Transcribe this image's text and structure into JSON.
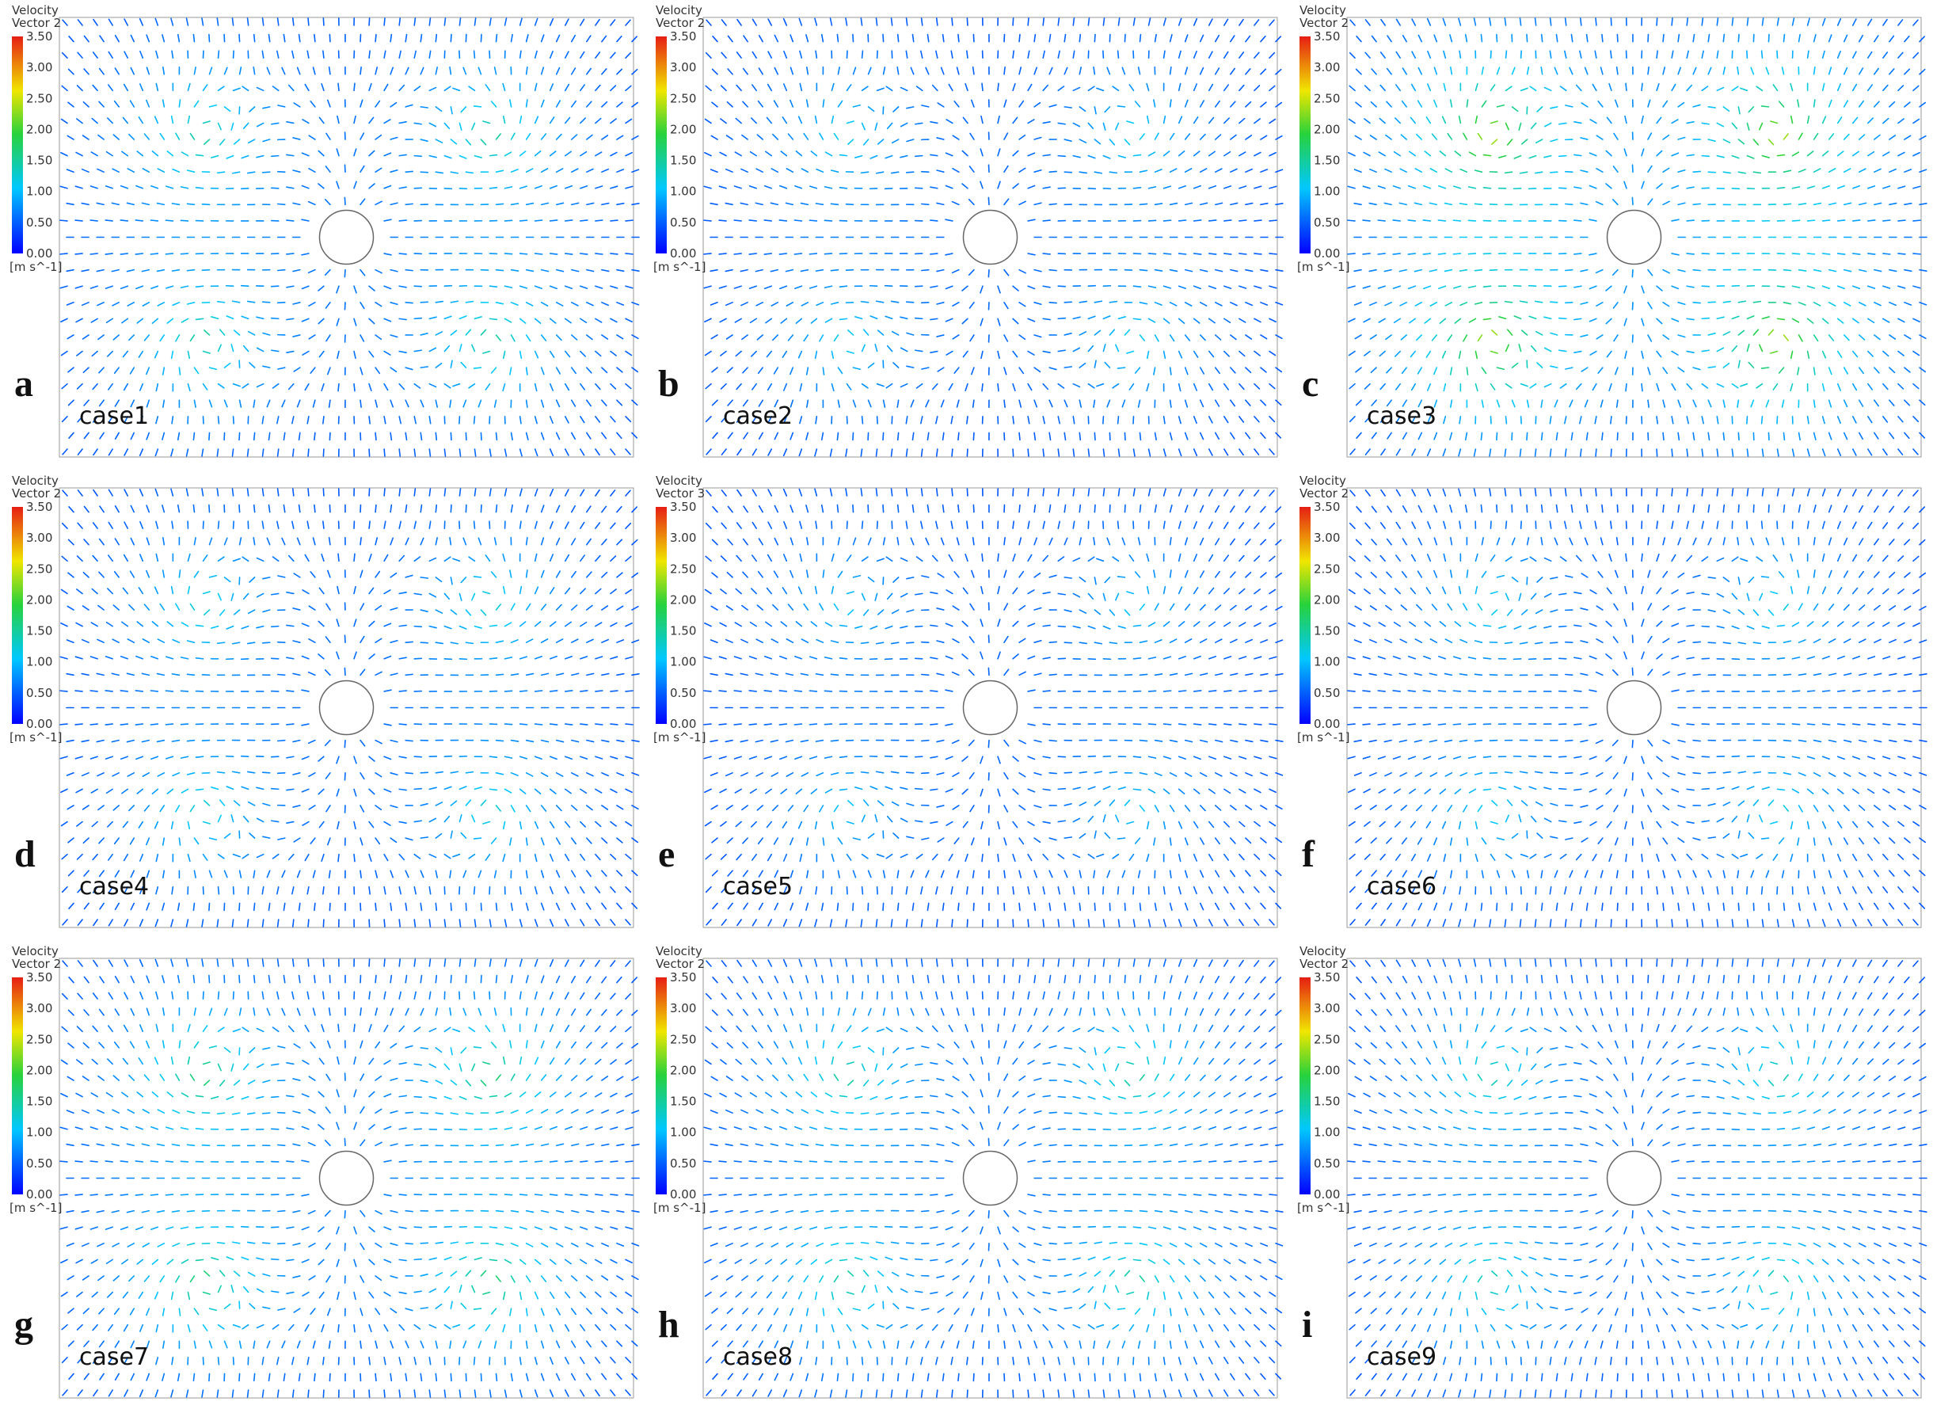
{
  "panels": [
    {
      "letter": "a",
      "case": "case1",
      "legend": {
        "title": "Velocity",
        "subtitle": "Vector 2",
        "ticks": [
          "3.50",
          "3.00",
          "2.50",
          "2.00",
          "1.50",
          "1.00",
          "0.50",
          "0.00"
        ],
        "unit": "[m s^-1]"
      }
    },
    {
      "letter": "b",
      "case": "case2",
      "legend": {
        "title": "Velocity",
        "subtitle": "Vector 2",
        "ticks": [
          "3.50",
          "3.00",
          "2.50",
          "2.00",
          "1.50",
          "1.00",
          "0.50",
          "0.00"
        ],
        "unit": "[m s^-1]"
      }
    },
    {
      "letter": "c",
      "case": "case3",
      "legend": {
        "title": "Velocity",
        "subtitle": "Vector 2",
        "ticks": [
          "3.50",
          "3.00",
          "2.50",
          "2.00",
          "1.50",
          "1.00",
          "0.50",
          "0.00"
        ],
        "unit": "[m s^-1]"
      }
    },
    {
      "letter": "d",
      "case": "case4",
      "legend": {
        "title": "Velocity",
        "subtitle": "Vector 2",
        "ticks": [
          "3.50",
          "3.00",
          "2.50",
          "2.00",
          "1.50",
          "1.00",
          "0.50",
          "0.00"
        ],
        "unit": "[m s^-1]"
      }
    },
    {
      "letter": "e",
      "case": "case5",
      "legend": {
        "title": "Velocity",
        "subtitle": "Vector 3",
        "ticks": [
          "3.50",
          "3.00",
          "2.50",
          "2.00",
          "1.50",
          "1.00",
          "0.50",
          "0.00"
        ],
        "unit": "[m s^-1]"
      }
    },
    {
      "letter": "f",
      "case": "case6",
      "legend": {
        "title": "Velocity",
        "subtitle": "Vector 2",
        "ticks": [
          "3.50",
          "3.00",
          "2.50",
          "2.00",
          "1.50",
          "1.00",
          "0.50",
          "0.00"
        ],
        "unit": "[m s^-1]"
      }
    },
    {
      "letter": "g",
      "case": "case7",
      "legend": {
        "title": "Velocity",
        "subtitle": "Vector 2",
        "ticks": [
          "3.50",
          "3.00",
          "2.50",
          "2.00",
          "1.50",
          "1.00",
          "0.50",
          "0.00"
        ],
        "unit": "[m s^-1]"
      }
    },
    {
      "letter": "h",
      "case": "case8",
      "legend": {
        "title": "Velocity",
        "subtitle": "Vector 2",
        "ticks": [
          "3.50",
          "3.00",
          "2.50",
          "2.00",
          "1.50",
          "1.00",
          "0.50",
          "0.00"
        ],
        "unit": "[m s^-1]"
      }
    },
    {
      "letter": "i",
      "case": "case9",
      "legend": {
        "title": "Velocity",
        "subtitle": "Vector 2",
        "ticks": [
          "3.50",
          "3.00",
          "2.50",
          "2.00",
          "1.50",
          "1.00",
          "0.50",
          "0.00"
        ],
        "unit": "[m s^-1]"
      }
    }
  ]
}
